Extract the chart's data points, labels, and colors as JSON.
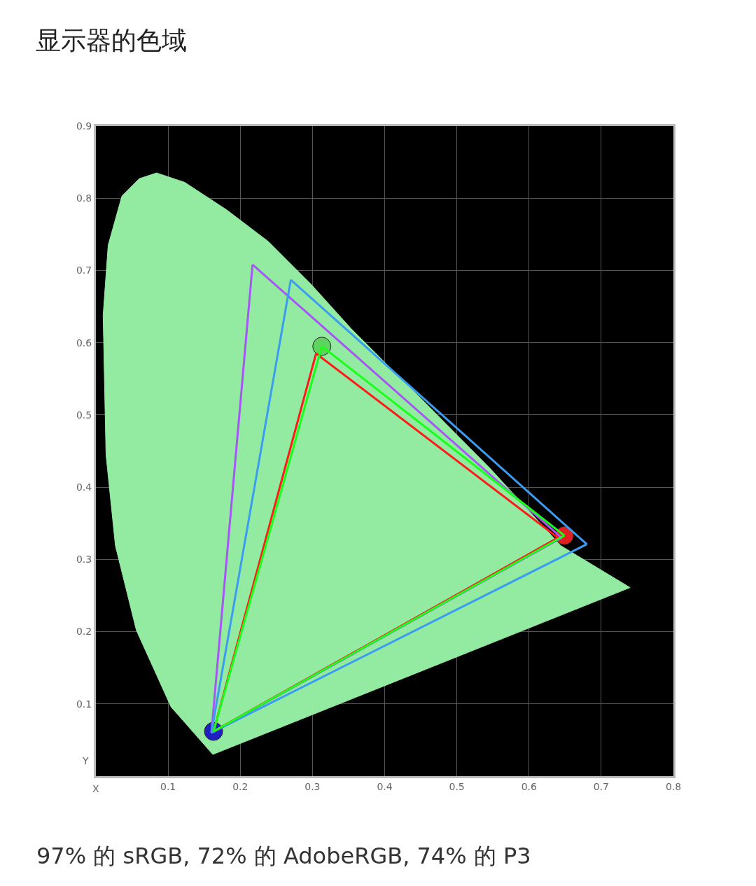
{
  "chart_data": {
    "type": "line",
    "title": "显示器的色域",
    "xlabel": "X",
    "ylabel": "Y",
    "annotations": [
      "97% 的 sRGB, 72% 的 AdobeRGB, 74% 的 P3"
    ],
    "xlim": [
      0,
      0.8
    ],
    "ylim": [
      0,
      0.9
    ],
    "xticks": [
      0.1,
      0.2,
      0.3,
      0.4,
      0.5,
      0.6,
      0.7,
      0.8
    ],
    "yticks": [
      0.1,
      0.2,
      0.3,
      0.4,
      0.5,
      0.6,
      0.7,
      0.8,
      0.9
    ],
    "grid": true,
    "series": [
      {
        "type": "area",
        "color": "#92eba0",
        "x": [
          0.162,
          0.104,
          0.056,
          0.027,
          0.014,
          0.01,
          0.017,
          0.036,
          0.06,
          0.084,
          0.123,
          0.181,
          0.239,
          0.297,
          0.354,
          0.451,
          0.547,
          0.644,
          0.74,
          0.162
        ],
        "values": [
          0.03,
          0.096,
          0.202,
          0.319,
          0.445,
          0.638,
          0.735,
          0.803,
          0.827,
          0.835,
          0.822,
          0.784,
          0.74,
          0.682,
          0.619,
          0.522,
          0.425,
          0.319,
          0.261,
          0.03
        ]
      },
      {
        "color": "#a855f7",
        "x": [
          0.16,
          0.217
        ],
        "values": [
          0.06,
          0.708
        ]
      },
      {
        "color": "#a855f7",
        "x": [
          0.217,
          0.645
        ],
        "values": [
          0.708,
          0.33
        ]
      },
      {
        "color": "#a855f7",
        "x": [
          0.16,
          0.645
        ],
        "values": [
          0.06,
          0.33
        ]
      },
      {
        "color": "#3b9cf0",
        "x": [
          0.16,
          0.27
        ],
        "values": [
          0.06,
          0.687
        ]
      },
      {
        "color": "#3b9cf0",
        "x": [
          0.27,
          0.68
        ],
        "values": [
          0.687,
          0.321
        ]
      },
      {
        "color": "#3b9cf0",
        "x": [
          0.16,
          0.68
        ],
        "values": [
          0.06,
          0.321
        ]
      },
      {
        "color": "#ff1a1a",
        "x": [
          0.163,
          0.305
        ],
        "values": [
          0.062,
          0.585
        ]
      },
      {
        "color": "#ff1a1a",
        "x": [
          0.305,
          0.64
        ],
        "values": [
          0.585,
          0.33
        ]
      },
      {
        "color": "#ff1a1a",
        "x": [
          0.163,
          0.64
        ],
        "values": [
          0.062,
          0.33
        ]
      },
      {
        "color": "#1aff1a",
        "x": [
          0.163,
          0.313
        ],
        "values": [
          0.062,
          0.595
        ]
      },
      {
        "color": "#1aff1a",
        "x": [
          0.313,
          0.649
        ],
        "values": [
          0.595,
          0.333
        ]
      },
      {
        "color": "#1aff1a",
        "x": [
          0.163,
          0.649
        ],
        "values": [
          0.062,
          0.333
        ]
      },
      {
        "type": "scatter",
        "marker": "circle",
        "colors": [
          "#5fd35f",
          "#e02020",
          "#2020c0"
        ],
        "x": [
          0.313,
          0.649,
          0.163
        ],
        "values": [
          0.595,
          0.333,
          0.062
        ]
      }
    ]
  }
}
